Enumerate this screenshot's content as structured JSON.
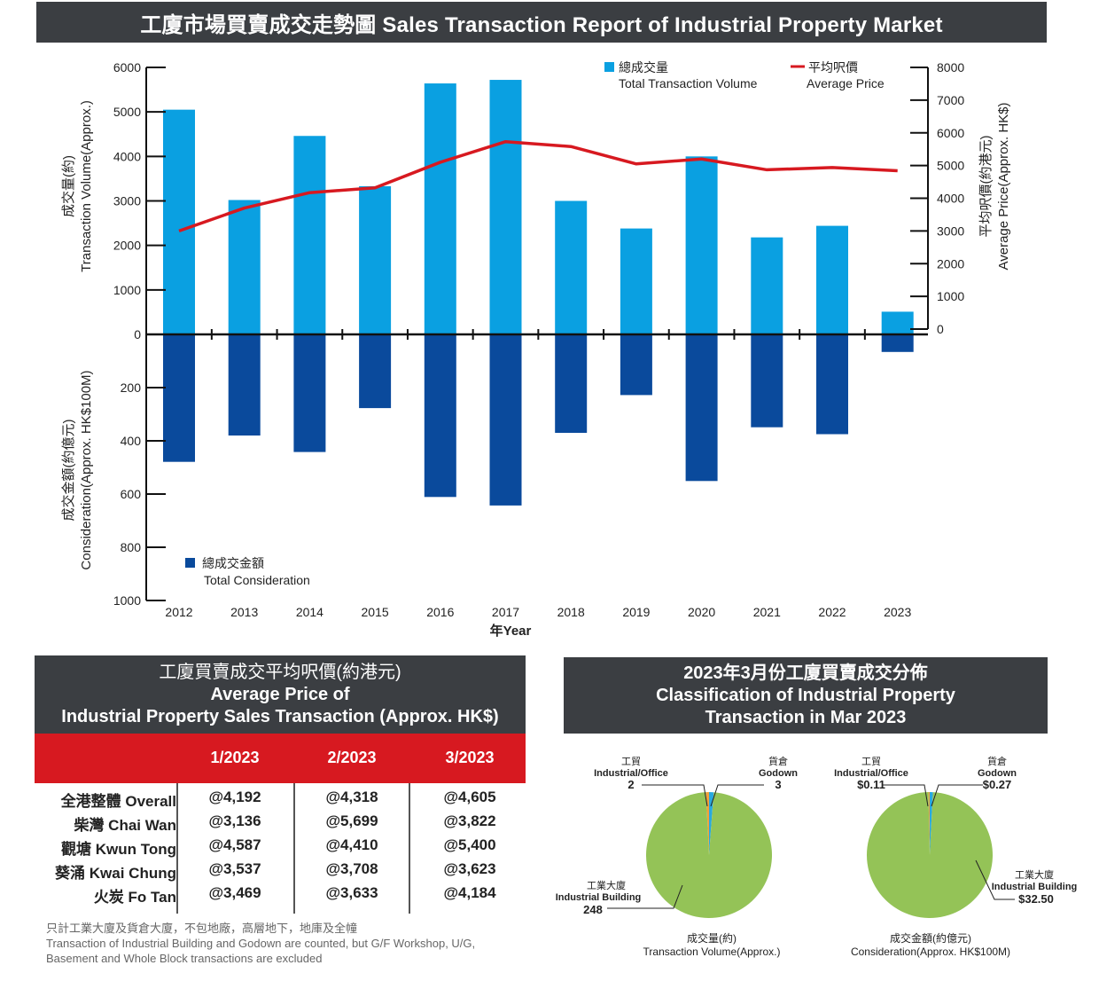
{
  "title": "工廈市場買賣成交走勢圖 Sales Transaction Report of Industrial Property Market",
  "chart_data": {
    "type": "bar",
    "categories": [
      "2012",
      "2013",
      "2014",
      "2015",
      "2016",
      "2017",
      "2018",
      "2019",
      "2020",
      "2021",
      "2022",
      "2023"
    ],
    "series": [
      {
        "name": "總成交量 Total Transaction Volume",
        "type": "bar",
        "axis": "left-upper",
        "color": "#0aa0e1",
        "values": [
          5050,
          3020,
          4460,
          3330,
          5640,
          5720,
          3000,
          2380,
          4000,
          2180,
          2440,
          510
        ]
      },
      {
        "name": "總成交金額 Total Consideration",
        "type": "bar",
        "axis": "left-lower",
        "color": "#0a4a9c",
        "values": [
          479,
          380,
          442,
          277,
          611,
          643,
          370,
          228,
          551,
          349,
          375,
          66
        ]
      },
      {
        "name": "平均呎價 Average Price",
        "type": "line",
        "axis": "right",
        "color": "#d71920",
        "values": [
          3000,
          3700,
          4170,
          4320,
          5100,
          5730,
          5580,
          5050,
          5200,
          4870,
          4940,
          4840
        ]
      }
    ],
    "y_left_upper": {
      "label_cn": "成交量(約)",
      "label_en": "Transaction Volume(Approx.)",
      "range": [
        0,
        6000
      ],
      "ticks": [
        "6000",
        "5000",
        "4000",
        "3000",
        "2000",
        "1000",
        "0"
      ]
    },
    "y_left_lower": {
      "label_cn": "成交金額(約億元)",
      "label_en": "Consideration(Approx. HK$100M)",
      "range": [
        0,
        1000
      ],
      "ticks": [
        "200",
        "400",
        "600",
        "800",
        "1000"
      ]
    },
    "y_right": {
      "label_cn": "平均呎價(約港元)",
      "label_en": "Average Price(Approx. HK$)",
      "range": [
        0,
        8000
      ],
      "ticks": [
        "8000",
        "7000",
        "6000",
        "5000",
        "4000",
        "3000",
        "2000",
        "1000",
        "0"
      ]
    },
    "xlabel": "年Year",
    "legend": {
      "volume_cn": "總成交量",
      "volume_en": "Total Transaction Volume",
      "price_cn": "平均呎價",
      "price_en": "Average Price",
      "consideration_cn": "總成交金額",
      "consideration_en": "Total Consideration"
    }
  },
  "price_table": {
    "header_lines": [
      "工廈買賣成交平均呎價(約港元)",
      "Average Price of",
      "Industrial Property Sales Transaction (Approx. HK$)"
    ],
    "columns": [
      "1/2023",
      "2/2023",
      "3/2023"
    ],
    "rows": [
      {
        "district": "全港整體 Overall",
        "values": [
          "@4,192",
          "@4,318",
          "@4,605"
        ]
      },
      {
        "district": "柴灣 Chai Wan",
        "values": [
          "@3,136",
          "@5,699",
          "@3,822"
        ]
      },
      {
        "district": "觀塘 Kwun Tong",
        "values": [
          "@4,587",
          "@4,410",
          "@5,400"
        ]
      },
      {
        "district": "葵涌 Kwai Chung",
        "values": [
          "@3,537",
          "@3,708",
          "@3,623"
        ]
      },
      {
        "district": "火炭 Fo Tan",
        "values": [
          "@3,469",
          "@3,633",
          "@4,184"
        ]
      }
    ],
    "note_lines": [
      "只計工業大廈及貨倉大廈，不包地廠，高層地下，地庫及全幢",
      "Transaction of Industrial Building and Godown are counted, but G/F Workshop, U/G,",
      "Basement and Whole Block transactions are excluded"
    ]
  },
  "classification": {
    "header_lines": [
      "2023年3月份工廈買賣成交分佈",
      "Classification of Industrial Property",
      "Transaction in Mar 2023"
    ],
    "pie_colors": {
      "industrial_building": "#94c357",
      "industrial_office": "#f2a03a",
      "godown": "#28a9e0"
    },
    "pies": [
      {
        "caption_cn": "成交量(約)",
        "caption_en": "Transaction Volume(Approx.)",
        "slices": [
          {
            "cn": "工業大廈",
            "en": "Industrial Building",
            "value": 248,
            "label": "248"
          },
          {
            "cn": "工貿",
            "en": "Industrial/Office",
            "value": 2,
            "label": "2"
          },
          {
            "cn": "貨倉",
            "en": "Godown",
            "value": 3,
            "label": "3"
          }
        ]
      },
      {
        "caption_cn": "成交金額(約億元)",
        "caption_en": "Consideration(Approx. HK$100M)",
        "slices": [
          {
            "cn": "工業大廈",
            "en": "Industrial Building",
            "value": 32.5,
            "label": "$32.50"
          },
          {
            "cn": "工貿",
            "en": "Industrial/Office",
            "value": 0.11,
            "label": "$0.11"
          },
          {
            "cn": "貨倉",
            "en": "Godown",
            "value": 0.27,
            "label": "$0.27"
          }
        ]
      }
    ]
  }
}
